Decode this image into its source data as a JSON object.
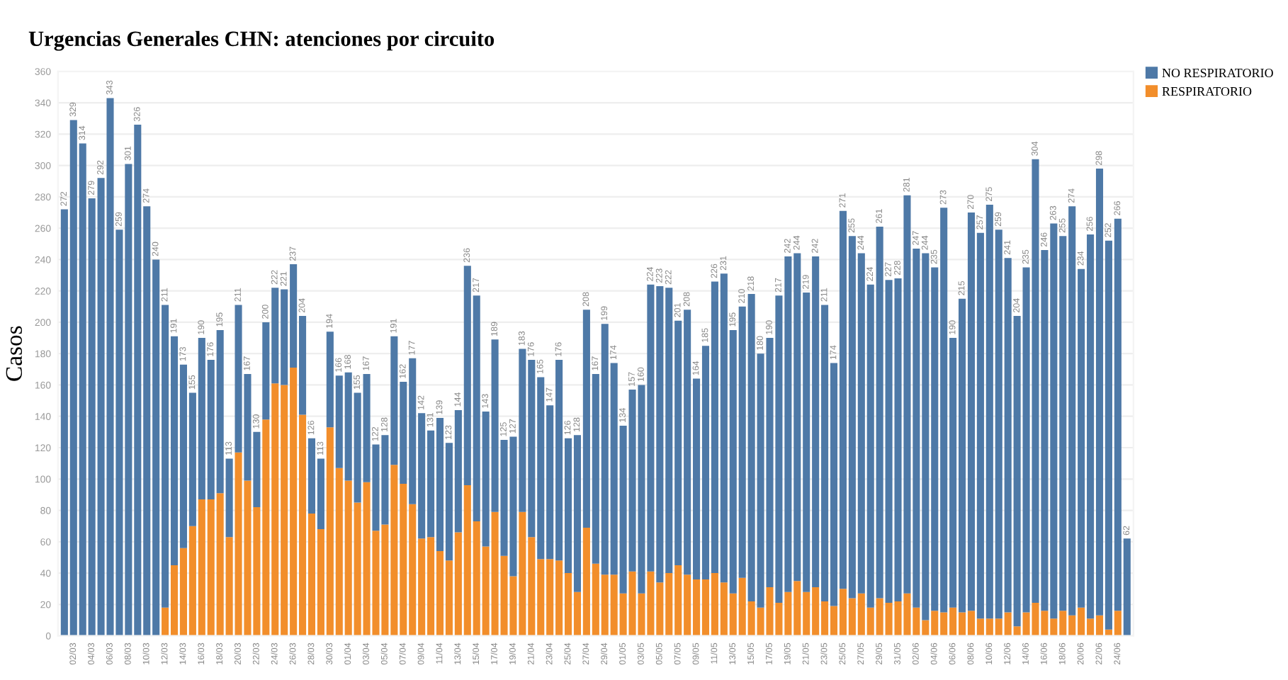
{
  "chart_data": {
    "type": "bar",
    "stacked": true,
    "title": "Urgencias Generales CHN: atenciones por circuito",
    "ylabel": "Casos",
    "categories": [
      null,
      "02/03",
      null,
      "04/03",
      null,
      "06/03",
      null,
      "08/03",
      null,
      "10/03",
      null,
      "12/03",
      null,
      "14/03",
      null,
      "16/03",
      null,
      "18/03",
      null,
      "20/03",
      null,
      "22/03",
      null,
      "24/03",
      null,
      "26/03",
      null,
      "28/03",
      null,
      "30/03",
      null,
      "01/04",
      null,
      "03/04",
      null,
      "05/04",
      null,
      "07/04",
      null,
      "09/04",
      null,
      "11/04",
      null,
      "13/04",
      null,
      "15/04",
      null,
      "17/04",
      null,
      "19/04",
      null,
      "21/04",
      null,
      "23/04",
      null,
      "25/04",
      null,
      "27/04",
      null,
      "29/04",
      null,
      "01/05",
      null,
      "03/05",
      null,
      "05/05",
      null,
      "07/05",
      null,
      "09/05",
      null,
      "11/05",
      null,
      "13/05",
      null,
      "15/05",
      null,
      "17/05",
      null,
      "19/05",
      null,
      "21/05",
      null,
      "23/05",
      null,
      "25/05",
      null,
      "27/05",
      null,
      "29/05",
      null,
      "31/05",
      null,
      "02/06",
      null,
      "04/06",
      null,
      "06/06",
      null,
      "08/06",
      null,
      "10/06",
      null,
      "12/06",
      null,
      "14/06",
      null,
      "16/06",
      null,
      "18/06",
      null,
      "20/06",
      null,
      "22/06",
      null,
      "24/06",
      null
    ],
    "series": [
      {
        "name": "RESPIRATORIO",
        "color": "#f28e2b",
        "values": [
          0,
          0,
          0,
          0,
          0,
          0,
          0,
          0,
          0,
          0,
          0,
          18,
          45,
          56,
          70,
          87,
          87,
          91,
          63,
          117,
          99,
          82,
          138,
          161,
          160,
          171,
          141,
          78,
          68,
          133,
          107,
          99,
          85,
          98,
          67,
          71,
          109,
          97,
          84,
          62,
          63,
          54,
          48,
          66,
          96,
          73,
          57,
          79,
          51,
          38,
          79,
          63,
          49,
          49,
          48,
          40,
          28,
          69,
          46,
          39,
          39,
          27,
          41,
          27,
          41,
          34,
          40,
          45,
          39,
          36,
          36,
          40,
          34,
          27,
          37,
          22,
          18,
          31,
          21,
          28,
          35,
          28,
          31,
          22,
          19,
          30,
          24,
          27,
          18,
          24,
          21,
          22,
          27,
          18,
          10,
          16,
          15,
          18,
          15,
          16,
          11,
          11,
          11,
          15,
          6,
          15,
          21,
          16,
          11,
          16,
          13,
          18,
          11,
          13,
          4,
          16,
          0
        ]
      },
      {
        "name": "NO RESPIRATORIO",
        "color": "#4e79a7",
        "values": [
          272,
          329,
          314,
          279,
          292,
          343,
          259,
          301,
          326,
          274,
          240,
          193,
          146,
          117,
          85,
          103,
          89,
          104,
          50,
          94,
          68,
          48,
          62,
          61,
          61,
          66,
          63,
          48,
          45,
          61,
          59,
          69,
          70,
          69,
          55,
          57,
          82,
          65,
          93,
          80,
          68,
          85,
          75,
          78,
          140,
          144,
          86,
          110,
          74,
          89,
          104,
          113,
          116,
          98,
          128,
          86,
          100,
          139,
          121,
          160,
          135,
          107,
          116,
          133,
          183,
          189,
          182,
          156,
          169,
          128,
          149,
          186,
          197,
          168,
          173,
          196,
          162,
          159,
          196,
          214,
          209,
          191,
          211,
          189,
          155,
          241,
          231,
          217,
          206,
          237,
          206,
          206,
          254,
          229,
          234,
          219,
          258,
          172,
          200,
          254,
          246,
          264,
          248,
          226,
          198,
          220,
          283,
          230,
          252,
          239,
          261,
          216,
          245,
          285,
          248,
          250,
          62
        ]
      }
    ],
    "totals": [
      "272",
      "329",
      "314",
      "279",
      "292",
      "343",
      "259",
      "301",
      "326",
      "274",
      "240",
      "211",
      "191",
      "173",
      "155",
      "190",
      "176",
      "195",
      "113",
      "211",
      "167",
      "130",
      "200",
      "222",
      "221",
      "237",
      "204",
      "126",
      "113",
      "194",
      "166",
      "168",
      "155",
      "167",
      "122",
      "128",
      "191",
      "162",
      "177",
      "142",
      "131",
      "139",
      "123",
      "144",
      "236",
      "217",
      "143",
      "189",
      "125",
      "127",
      "183",
      "176",
      "165",
      "147",
      "176",
      "126",
      "128",
      "208",
      "167",
      "199",
      "174",
      "134",
      "157",
      "160",
      "224",
      "223",
      "222",
      "201",
      "208",
      "164",
      "185",
      "226",
      "231",
      "195",
      "210",
      "218",
      "180",
      "190",
      "217",
      "242",
      "244",
      "219",
      "242",
      "211",
      "174",
      "271",
      "255",
      "244",
      "224",
      "261",
      "227",
      "228",
      "281",
      "247",
      "244",
      "235",
      "273",
      "190",
      "215",
      "270",
      "257",
      "275",
      "259",
      "241",
      "204",
      "235",
      "304",
      "246",
      "263",
      "255",
      "274",
      "234",
      "256",
      "298",
      "252",
      "266",
      "62"
    ],
    "ylim": [
      0,
      360
    ],
    "yticks": [
      0,
      20,
      40,
      60,
      80,
      100,
      120,
      140,
      160,
      180,
      200,
      220,
      240,
      260,
      280,
      300,
      320,
      340,
      360
    ],
    "grid": "y",
    "legend": "top right"
  }
}
